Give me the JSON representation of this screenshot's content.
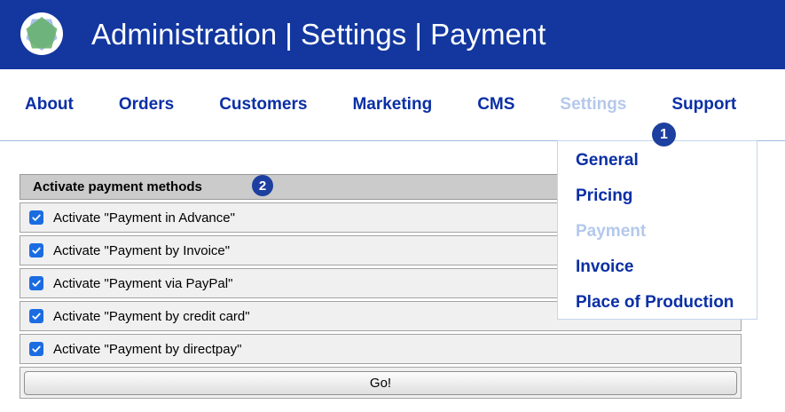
{
  "header": {
    "title": "Administration | Settings | Payment",
    "logo": "aperture-logo"
  },
  "nav": {
    "items": [
      {
        "id": "about",
        "label": "About",
        "active": false
      },
      {
        "id": "orders",
        "label": "Orders",
        "active": false
      },
      {
        "id": "customers",
        "label": "Customers",
        "active": false
      },
      {
        "id": "marketing",
        "label": "Marketing",
        "active": false
      },
      {
        "id": "cms",
        "label": "CMS",
        "active": false
      },
      {
        "id": "settings",
        "label": "Settings",
        "active": true
      },
      {
        "id": "support",
        "label": "Support",
        "active": false
      }
    ]
  },
  "dropdown": {
    "items": [
      {
        "id": "general",
        "label": "General",
        "active": false
      },
      {
        "id": "pricing",
        "label": "Pricing",
        "active": false
      },
      {
        "id": "payment",
        "label": "Payment",
        "active": true
      },
      {
        "id": "invoice",
        "label": "Invoice",
        "active": false
      },
      {
        "id": "place-of-production",
        "label": "Place of Production",
        "active": false
      }
    ]
  },
  "annotations": {
    "step1": "1",
    "step2": "2"
  },
  "panel": {
    "title": "Activate payment methods",
    "rows": [
      {
        "id": "payment-in-advance",
        "label": "Activate \"Payment in Advance\"",
        "checked": true
      },
      {
        "id": "payment-by-invoice",
        "label": "Activate \"Payment by Invoice\"",
        "checked": true
      },
      {
        "id": "payment-via-paypal",
        "label": "Activate \"Payment via PayPal\"",
        "checked": true
      },
      {
        "id": "payment-by-credit-card",
        "label": "Activate \"Payment by credit card\"",
        "checked": true
      },
      {
        "id": "payment-by-directpay",
        "label": "Activate \"Payment by directpay\"",
        "checked": true
      }
    ],
    "go_label": "Go!"
  },
  "colors": {
    "header_bg": "#13379f",
    "nav_link": "#0a2fa5",
    "nav_active": "#b4c8ec",
    "badge_bg": "#1d3f9f",
    "divider": "#9cbbdf",
    "dropdown_border": "#c4d6ee",
    "panel_header_bg": "#cbcbcb",
    "row_bg": "#f0f0f0",
    "row_border": "#a3a3a3",
    "checkbox_blue": "#1b6ce1",
    "logo_green": "#66b06c",
    "logo_blue": "#a3bfe8"
  }
}
